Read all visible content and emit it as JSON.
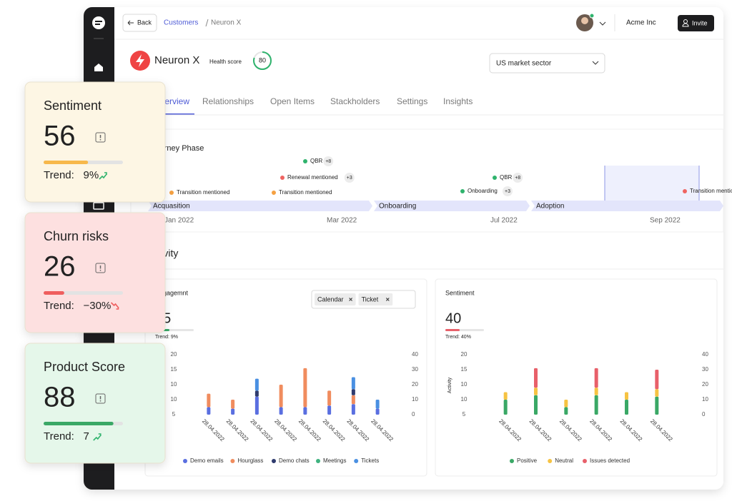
{
  "nav": {
    "back": "Back",
    "breadcrumb": [
      "Customers",
      "Neuron X"
    ],
    "company": "Acme Inc",
    "invite": "Invite"
  },
  "customer": {
    "name": "Neuron X",
    "health_label": "Health score",
    "health_score": 80,
    "sector": "US market sector"
  },
  "tabs": [
    "Overview",
    "Relationships",
    "Open Items",
    "Stackholders",
    "Settings",
    "Insights"
  ],
  "journey": {
    "title": "Journey Phase",
    "events": [
      {
        "label": "QBR",
        "badge": "+8",
        "color": "#2fb36d"
      },
      {
        "label": "Renewal mentioned",
        "badge": "+3",
        "color": "#ef6461"
      },
      {
        "label": "Transition mentioned",
        "color": "#f5a142"
      },
      {
        "label": "Transition mentioned",
        "color": "#f5a142"
      },
      {
        "label": "QBR",
        "badge": "+8",
        "color": "#2fb36d"
      },
      {
        "label": "Onboarding",
        "badge": "+3",
        "color": "#2fb36d"
      },
      {
        "label": "Transition mentioned",
        "color": "#ef6461"
      }
    ],
    "phases": [
      "Acquasition",
      "Onboarding",
      "Adoption"
    ],
    "months": [
      "Jan 2022",
      "Mar 2022",
      "Jul 2022",
      "Sep 2022"
    ]
  },
  "activity_title": "Activity",
  "chart_data": [
    {
      "type": "bar",
      "stacked": true,
      "title": "Engagemnt",
      "kpi": 35,
      "trend": "Trend: 9%",
      "filters": [
        "Calendar",
        "Ticket"
      ],
      "left_axis_labels": [
        "20",
        "15",
        "10",
        "10",
        "5"
      ],
      "categories": [
        "28.04.2022",
        "28.04.2022",
        "28.04.2022",
        "28.04.2022",
        "28.04.2022",
        "28.04.2022",
        "28.04.2022",
        "28.04.2022"
      ],
      "series": [
        {
          "name": "Demo emails",
          "color": "#5a6fe0",
          "axis": "y2",
          "values": [
            5,
            4,
            12,
            5,
            5,
            6,
            7,
            4
          ]
        },
        {
          "name": "Hourglass",
          "color": "#f08c5e",
          "axis": "y2",
          "values": [
            9,
            6,
            0,
            15,
            26,
            10,
            6,
            0
          ]
        },
        {
          "name": "Demo chats",
          "color": "#2f3b6e",
          "axis": "y2",
          "values": [
            0,
            0,
            4,
            0,
            0,
            0,
            4,
            0
          ]
        },
        {
          "name": "Meetings",
          "color": "#3fb27f",
          "axis": "y2",
          "values": [
            0,
            0,
            0,
            0,
            0,
            0,
            0,
            0
          ]
        },
        {
          "name": "Tickets",
          "color": "#4a90e2",
          "axis": "y2",
          "values": [
            0,
            0,
            8,
            0,
            0,
            0,
            8,
            6
          ]
        }
      ],
      "y2lim": [
        0,
        40
      ],
      "y2ticks": [
        0,
        10,
        20,
        30,
        40
      ]
    },
    {
      "type": "bar",
      "stacked": true,
      "title": "Sentiment",
      "kpi": 40,
      "trend": "Trend: 40%",
      "ylabel": "Activity",
      "left_axis_labels": [
        "20",
        "15",
        "10",
        "10",
        "5"
      ],
      "categories": [
        "28.04.2022",
        "28.04.2022",
        "28.04.2022",
        "28.04.2022",
        "28.04.2022",
        "28.04.2022"
      ],
      "series": [
        {
          "name": "Positive",
          "color": "#3aa866",
          "axis": "y2",
          "values": [
            10,
            13,
            5,
            13,
            10,
            12
          ]
        },
        {
          "name": "Neutral",
          "color": "#f6c343",
          "axis": "y2",
          "values": [
            5,
            5,
            5,
            5,
            5,
            5
          ]
        },
        {
          "name": "Issues detected",
          "color": "#e8606a",
          "axis": "y2",
          "values": [
            0,
            13,
            0,
            13,
            0,
            13
          ]
        }
      ],
      "y2lim": [
        0,
        40
      ],
      "y2ticks": [
        0,
        10,
        20,
        30,
        40
      ]
    }
  ],
  "cards": [
    {
      "title": "Sentiment",
      "value": 56,
      "trend_label": "Trend:",
      "trend": "9%",
      "background": "#fdf6e4",
      "bar": "#f7b84b",
      "arrow": "#2fb36d"
    },
    {
      "title": "Churn risks",
      "value": 26,
      "trend_label": "Trend:",
      "trend": "−30%",
      "background": "#fde0e0",
      "bar": "#ef5e5e",
      "arrow": "#ef5e5e"
    },
    {
      "title": "Product Score",
      "value": 88,
      "trend_label": "Trend:",
      "trend": "7",
      "background": "#e5f7ea",
      "bar": "#3aa866",
      "arrow": "#2fb36d"
    }
  ]
}
